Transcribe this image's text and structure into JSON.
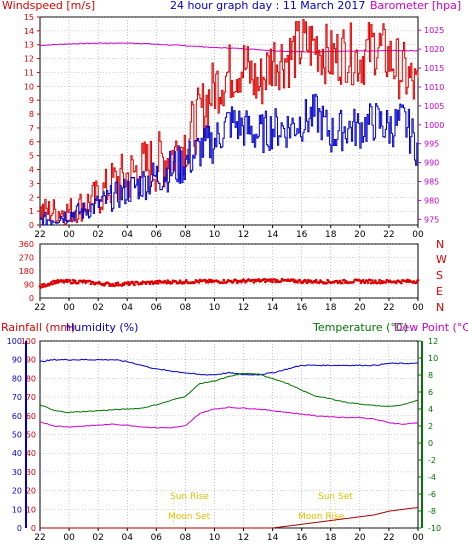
{
  "header": {
    "left_label": "Windspeed [m/s]",
    "title": "24 hour graph day : 11 March 2017",
    "right_label": "Barometer [hpa]"
  },
  "legend_mid": {
    "rainfall": "Rainfall (mm)",
    "humidity": "Humidity (%)",
    "temperature": "Temperature (°C)",
    "dewpoint": "Dew Point (°C)"
  },
  "annotations": {
    "sun_rise": "Sun Rise",
    "sun_set": "Sun Set",
    "moon_set": "Moon Set",
    "moon_rise": "Moon Rise"
  },
  "x_ticks": [
    "22",
    "00",
    "02",
    "04",
    "06",
    "08",
    "10",
    "12",
    "14",
    "16",
    "18",
    "20",
    "22",
    "00"
  ],
  "colors": {
    "wind_avg": "#0000cc",
    "wind_gust": "#dd0000",
    "barometer": "#cc00cc",
    "direction": "#dd0000",
    "humidity": "#0000cc",
    "temperature": "#007700",
    "dewpoint": "#cc00cc",
    "rain": "#aa0000",
    "annotation": "#e0c000",
    "grid": "#888888"
  },
  "chart_data": [
    {
      "type": "line",
      "name": "wind-barometer",
      "x_unit": "hour",
      "x": [
        22,
        23,
        0,
        1,
        2,
        3,
        4,
        5,
        6,
        7,
        8,
        9,
        10,
        11,
        12,
        13,
        14,
        15,
        16,
        17,
        18,
        19,
        20,
        21,
        22,
        23,
        24
      ],
      "series": [
        {
          "name": "gust",
          "values": [
            1,
            1,
            1,
            1.5,
            2,
            3,
            3.5,
            4,
            4.5,
            5,
            6,
            8,
            10,
            11,
            11.5,
            10,
            12,
            12,
            13,
            13,
            12,
            12.5,
            12,
            13,
            12,
            11,
            9.5
          ]
        },
        {
          "name": "average",
          "values": [
            0.3,
            0.5,
            0.8,
            1,
            1.5,
            2,
            2.5,
            3,
            3.5,
            4,
            4.5,
            5.5,
            6,
            7.5,
            7,
            6.5,
            7,
            7,
            7.5,
            8,
            6.5,
            7,
            7,
            7.5,
            7,
            7.5,
            5.5
          ]
        },
        {
          "name": "barometer",
          "axis": "right",
          "values": [
            1021,
            1021.2,
            1021.4,
            1021.5,
            1021.6,
            1021.6,
            1021.6,
            1021.5,
            1021.3,
            1021.1,
            1020.9,
            1020.7,
            1020.4,
            1020.3,
            1020.1,
            1019.9,
            1019.6,
            1019.4,
            1019.3,
            1019.3,
            1019.4,
            1019.4,
            1019.5,
            1019.5,
            1019.6,
            1019.6,
            1019.6
          ]
        }
      ],
      "ylim": [
        0,
        15
      ],
      "y_ticks": [
        0,
        1,
        2,
        3,
        4,
        5,
        6,
        7,
        8,
        9,
        10,
        11,
        12,
        13,
        14,
        15
      ],
      "y2lim": [
        973.5,
        1028.5
      ],
      "y2_ticks": [
        975,
        980,
        985,
        990,
        995,
        1000,
        1005,
        1010,
        1015,
        1020,
        1025
      ]
    },
    {
      "type": "scatter",
      "name": "wind-direction",
      "x_unit": "hour",
      "x": [
        22,
        23,
        0,
        1,
        2,
        3,
        4,
        5,
        6,
        7,
        8,
        9,
        10,
        11,
        12,
        13,
        14,
        15,
        16,
        17,
        18,
        19,
        20,
        21,
        22,
        23,
        24
      ],
      "values": [
        75,
        108,
        110,
        108,
        98,
        90,
        95,
        100,
        104,
        108,
        108,
        111,
        110,
        112,
        113,
        115,
        118,
        114,
        112,
        110,
        108,
        110,
        112,
        110,
        110,
        111,
        112
      ],
      "ylim": [
        0,
        360
      ],
      "y_ticks": [
        0,
        90,
        180,
        270,
        360
      ],
      "y2_ticks": [
        "N",
        "W",
        "S",
        "E",
        "N"
      ]
    },
    {
      "type": "line",
      "name": "rain-humidity-temperature",
      "x_unit": "hour",
      "x": [
        22,
        23,
        0,
        1,
        2,
        3,
        4,
        5,
        6,
        7,
        8,
        9,
        10,
        11,
        12,
        13,
        14,
        15,
        16,
        17,
        18,
        19,
        20,
        21,
        22,
        23,
        24
      ],
      "series": [
        {
          "name": "humidity",
          "axis": "left",
          "values": [
            89,
            90,
            90,
            90,
            90,
            90,
            89,
            87,
            85,
            84,
            83,
            82,
            82,
            83,
            82,
            82,
            83,
            85,
            87,
            87,
            87,
            87,
            87,
            87,
            88,
            88,
            88
          ]
        },
        {
          "name": "temperature",
          "axis": "right",
          "values": [
            4.5,
            3.8,
            3.6,
            3.7,
            3.8,
            3.9,
            4.0,
            4.1,
            4.5,
            5.0,
            5.5,
            7.0,
            7.3,
            7.8,
            8.2,
            8.1,
            7.6,
            7.0,
            6.2,
            5.5,
            5.2,
            4.8,
            4.6,
            4.4,
            4.3,
            4.5,
            5.0
          ]
        },
        {
          "name": "dewpoint",
          "axis": "right",
          "values": [
            2.5,
            2.0,
            1.9,
            2.0,
            2.1,
            2.2,
            2.1,
            1.9,
            1.8,
            1.8,
            2.0,
            3.5,
            4.0,
            4.2,
            4.1,
            4.0,
            3.8,
            3.6,
            3.4,
            3.2,
            3.1,
            3.0,
            3.0,
            2.8,
            2.4,
            2.2,
            2.4
          ]
        },
        {
          "name": "rainfall",
          "axis": "left",
          "values": [
            0,
            0,
            0,
            0,
            0,
            0,
            0,
            0,
            0,
            0,
            0,
            0,
            0,
            0,
            0,
            0,
            0,
            1,
            2,
            3,
            4,
            5,
            6,
            7,
            9,
            10,
            11
          ]
        }
      ],
      "ylim": [
        0,
        100
      ],
      "y_ticks": [
        0,
        10,
        20,
        30,
        40,
        50,
        60,
        70,
        80,
        90,
        100
      ],
      "y2lim": [
        -10,
        12
      ],
      "y2_ticks": [
        -10,
        -8,
        -6,
        -4,
        -2,
        0,
        2,
        4,
        6,
        8,
        10,
        12
      ]
    }
  ]
}
